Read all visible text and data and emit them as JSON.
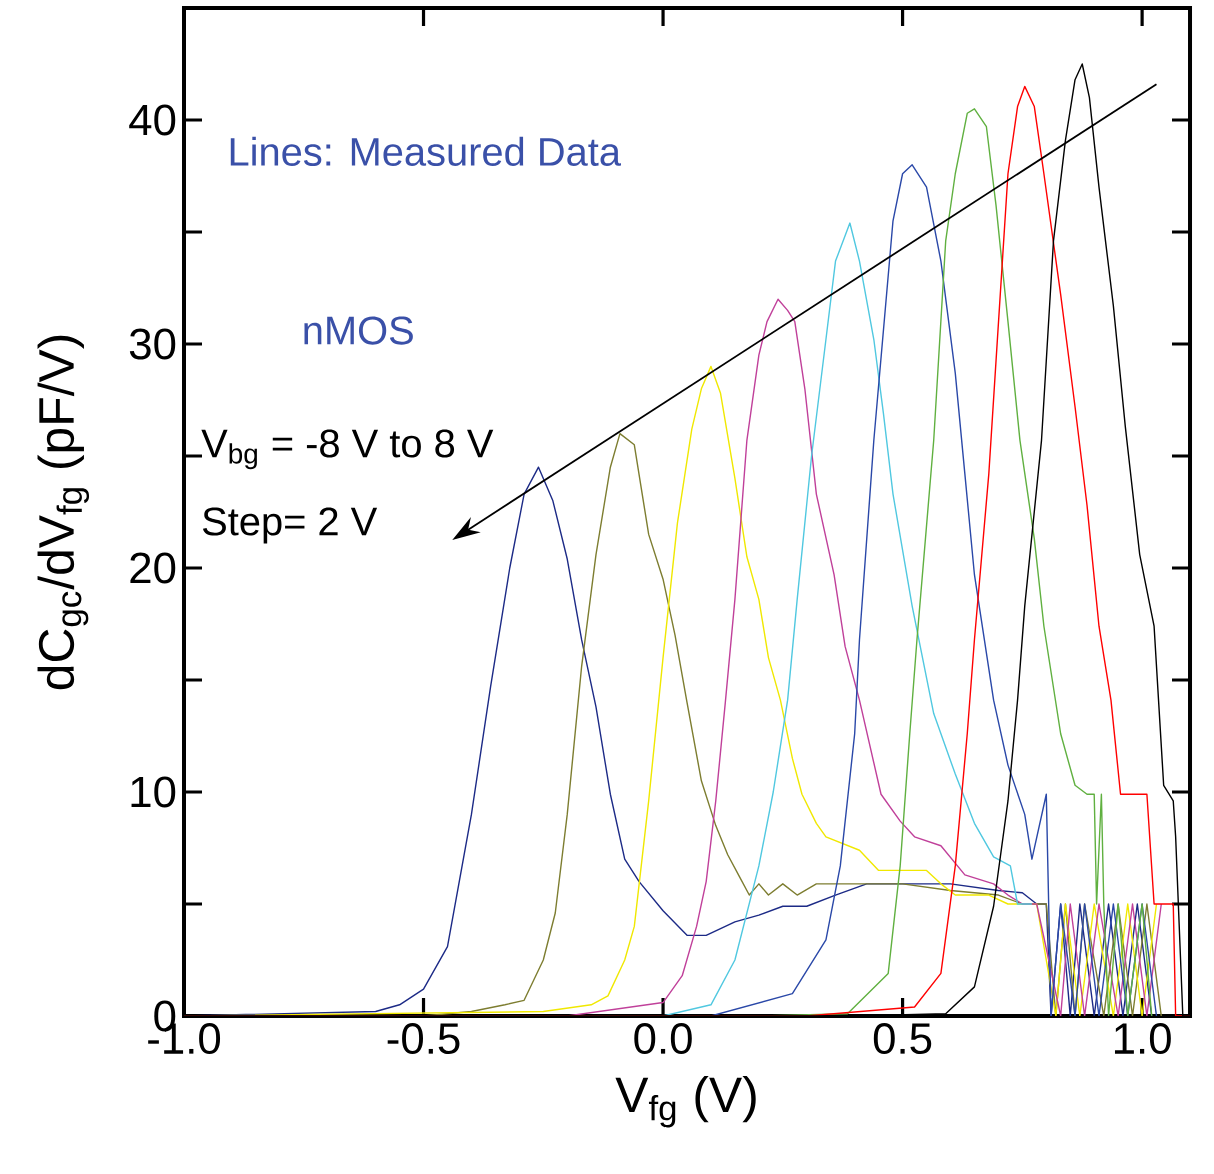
{
  "chart_data": {
    "type": "line",
    "xlabel": "V$_{fg}$ (V)",
    "ylabel": "dC$_{gc}$/dV$_{fg}$ (pF/V)",
    "annotations": [
      "Lines: Measured Data",
      "nMOS",
      "V$_{bg}$ = -8 V to 8 V",
      "Step= 2 V"
    ],
    "xlim": [
      -1.0,
      1.1
    ],
    "ylim": [
      0,
      45
    ],
    "xticks": [
      {
        "value": -1.0,
        "label": "-1.0"
      },
      {
        "value": -0.5,
        "label": "-0.5"
      },
      {
        "value": 0,
        "label": "0.0"
      },
      {
        "value": 0.5,
        "label": "0.5"
      },
      {
        "value": 1.0,
        "label": "1.0"
      }
    ],
    "yticks": [
      0,
      {
        "value": 5,
        "label": null
      },
      10,
      {
        "value": 15,
        "label": null
      },
      20,
      {
        "value": 25,
        "label": null
      },
      30,
      {
        "value": 35,
        "label": null
      },
      40
    ],
    "line_style": "solid",
    "series": [
      {
        "color": "#1c2a86",
        "x": [
          -1.0,
          -0.6,
          -0.55,
          -0.5,
          -0.45,
          -0.4,
          -0.36,
          -0.32,
          -0.29,
          -0.26,
          -0.23,
          -0.2,
          -0.17,
          -0.14,
          -0.11,
          -0.08,
          -0.05,
          0.0,
          0.05,
          0.09,
          0.15,
          0.2,
          0.25,
          0.3,
          0.36,
          0.425,
          0.5,
          0.6,
          0.7,
          0.75,
          0.78,
          0.8,
          0.81,
          0.83,
          0.85,
          0.87,
          0.9,
          0.93,
          0.96,
          0.99,
          1.02
        ],
        "values": [
          0,
          0.2,
          0.5,
          1.2,
          3.1,
          9,
          14.7,
          20,
          23.3,
          24.5,
          23,
          20.4,
          16.8,
          13.8,
          9.9,
          7,
          6,
          4.7,
          3.6,
          3.6,
          4.2,
          4.5,
          4.9,
          4.9,
          5.4,
          5.9,
          5.9,
          5.9,
          5.6,
          5.5,
          5,
          5,
          0,
          5,
          0,
          5,
          0,
          5,
          0,
          5,
          0
        ]
      },
      {
        "color": "#7d7d30",
        "x": [
          -1.0,
          -0.5,
          -0.4,
          -0.33,
          -0.29,
          -0.25,
          -0.225,
          -0.2,
          -0.17,
          -0.14,
          -0.11,
          -0.09,
          -0.06,
          -0.03,
          0.0,
          0.025,
          0.05,
          0.08,
          0.11,
          0.135,
          0.16,
          0.18,
          0.2,
          0.22,
          0.25,
          0.28,
          0.32,
          0.4,
          0.5,
          0.6,
          0.7,
          0.75,
          0.8,
          0.82,
          0.84,
          0.86,
          0.88,
          0.92,
          0.95,
          0.98,
          1.01,
          1.04
        ],
        "values": [
          0,
          0,
          0.2,
          0.5,
          0.7,
          2.5,
          4.6,
          9,
          15.6,
          20.6,
          24.5,
          26,
          25.5,
          21.5,
          19.5,
          17,
          14,
          10.5,
          8.5,
          7.2,
          6.2,
          5.4,
          5.9,
          5.4,
          5.9,
          5.4,
          5.9,
          5.9,
          5.9,
          5.6,
          5.4,
          5,
          5,
          0,
          5,
          0,
          5,
          0,
          5,
          0,
          5,
          0
        ]
      },
      {
        "color": "#f0e800",
        "x": [
          -1.0,
          -0.25,
          -0.15,
          -0.115,
          -0.08,
          -0.06,
          -0.03,
          0.0,
          0.03,
          0.06,
          0.08,
          0.1,
          0.12,
          0.15,
          0.175,
          0.2,
          0.22,
          0.245,
          0.27,
          0.29,
          0.32,
          0.34,
          0.41,
          0.45,
          0.55,
          0.58,
          0.61,
          0.68,
          0.72,
          0.78,
          0.82,
          0.84,
          0.87,
          0.9,
          0.94,
          0.97,
          1.0,
          1.03
        ],
        "values": [
          0,
          0.2,
          0.5,
          0.9,
          2.5,
          4,
          9.6,
          16,
          22,
          26.2,
          28,
          29,
          27.8,
          24,
          20.5,
          18.6,
          16,
          14.1,
          11.5,
          9.9,
          8.6,
          8,
          7.4,
          6.5,
          6.5,
          5.9,
          5.4,
          5.4,
          5,
          5,
          0,
          5,
          0,
          5,
          0,
          5,
          0,
          5
        ]
      },
      {
        "color": "#c0409a",
        "x": [
          -1.0,
          -0.2,
          0.0,
          0.04,
          0.07,
          0.09,
          0.11,
          0.13,
          0.15,
          0.175,
          0.2,
          0.217,
          0.24,
          0.26,
          0.275,
          0.296,
          0.32,
          0.357,
          0.38,
          0.41,
          0.455,
          0.495,
          0.525,
          0.58,
          0.63,
          0.69,
          0.72,
          0.75,
          0.78,
          0.83,
          0.85,
          0.88,
          0.91,
          0.95,
          0.98,
          1.01,
          1.04
        ],
        "values": [
          0,
          0,
          0.6,
          1.8,
          4,
          6,
          9.6,
          14,
          18.6,
          25.7,
          29.5,
          31,
          32,
          31.5,
          31,
          28,
          23.3,
          19.7,
          16.5,
          14.1,
          9.9,
          8.7,
          8,
          7.6,
          6.3,
          5.9,
          5.4,
          5,
          5,
          0,
          5,
          0,
          5,
          0,
          5,
          0,
          5
        ]
      },
      {
        "color": "#50c8e0",
        "x": [
          -1.0,
          0.0,
          0.1,
          0.15,
          0.2,
          0.23,
          0.26,
          0.28,
          0.31,
          0.34,
          0.36,
          0.39,
          0.41,
          0.44,
          0.46,
          0.48,
          0.52,
          0.565,
          0.61,
          0.65,
          0.69,
          0.725,
          0.74,
          0.77
        ],
        "values": [
          0,
          0,
          0.5,
          2.5,
          6.7,
          10,
          14.1,
          18.6,
          25,
          30.2,
          33.7,
          35.4,
          33.7,
          30.2,
          26.9,
          23.3,
          18.3,
          13.5,
          10.8,
          8.6,
          7.1,
          6.7,
          5,
          5
        ]
      },
      {
        "color": "#2a48a8",
        "x": [
          -1.0,
          0.1,
          0.27,
          0.34,
          0.37,
          0.4,
          0.41,
          0.44,
          0.48,
          0.5,
          0.52,
          0.55,
          0.58,
          0.61,
          0.63,
          0.65,
          0.69,
          0.72,
          0.755,
          0.77,
          0.8,
          0.81,
          0.83,
          0.86,
          0.88,
          0.91,
          0.94,
          0.97,
          1.0,
          1.03
        ],
        "values": [
          0,
          0,
          1,
          3.4,
          6.7,
          12.6,
          16.8,
          25.7,
          35.5,
          37.6,
          38,
          37,
          33.7,
          28.7,
          24.2,
          19.7,
          14.1,
          11.2,
          9,
          7,
          9.9,
          0,
          5,
          0,
          5,
          0,
          5,
          0,
          5,
          0
        ]
      },
      {
        "color": "#60b040",
        "x": [
          -1.0,
          0.2,
          0.385,
          0.47,
          0.495,
          0.515,
          0.53,
          0.565,
          0.59,
          0.61,
          0.635,
          0.65,
          0.675,
          0.695,
          0.72,
          0.745,
          0.775,
          0.795,
          0.83,
          0.86,
          0.885,
          0.9,
          0.905,
          0.915,
          0.92,
          0.93,
          0.95,
          0.97,
          1.0,
          1.02
        ],
        "values": [
          0,
          0,
          0.1,
          1.9,
          6.7,
          12.6,
          16.8,
          25.7,
          34.6,
          37.6,
          40.3,
          40.5,
          39.7,
          36.2,
          31,
          25.7,
          21.3,
          17.4,
          12.6,
          10.3,
          9.9,
          9.9,
          5,
          9.9,
          5,
          0,
          5,
          0,
          5,
          0
        ]
      },
      {
        "color": "#ff0000",
        "x": [
          -1.0,
          0.3,
          0.525,
          0.58,
          0.61,
          0.635,
          0.65,
          0.68,
          0.72,
          0.74,
          0.755,
          0.775,
          0.795,
          0.83,
          0.86,
          0.885,
          0.91,
          0.935,
          0.955,
          1.01,
          1.025,
          1.065,
          1.07,
          1.1
        ],
        "values": [
          0,
          0,
          0.4,
          1.9,
          6.7,
          12.6,
          16.8,
          24.2,
          37.6,
          40.6,
          41.5,
          40.6,
          37.6,
          32.2,
          27.2,
          22.8,
          17.4,
          14.1,
          9.9,
          9.9,
          5,
          5,
          0,
          0
        ]
      },
      {
        "color": "#000000",
        "x": [
          -1.0,
          0.4,
          0.59,
          0.65,
          0.69,
          0.72,
          0.74,
          0.755,
          0.79,
          0.815,
          0.84,
          0.86,
          0.875,
          0.89,
          0.91,
          0.94,
          0.965,
          0.995,
          1.025,
          1.045,
          1.065,
          1.07,
          1.085,
          1.1
        ],
        "values": [
          0,
          0,
          0.1,
          1.3,
          4.9,
          9.6,
          14.1,
          18.3,
          25.7,
          34.6,
          39.1,
          41.8,
          42.5,
          41,
          37,
          31.7,
          26.3,
          20.6,
          17.4,
          10.3,
          9.6,
          8,
          0,
          0
        ]
      }
    ]
  }
}
